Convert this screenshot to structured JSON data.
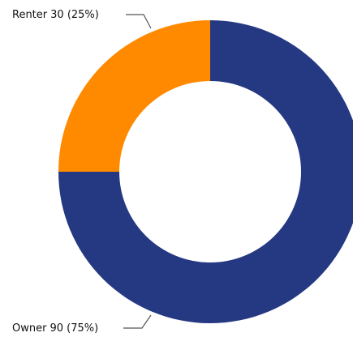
{
  "chart_data": {
    "type": "donut",
    "categories": [
      "Owner",
      "Renter"
    ],
    "values": [
      90,
      30
    ],
    "value_labels": [
      "90 (75%)",
      "30 (25%)"
    ],
    "colors": [
      "#253882",
      "#ff8a00"
    ]
  }
}
